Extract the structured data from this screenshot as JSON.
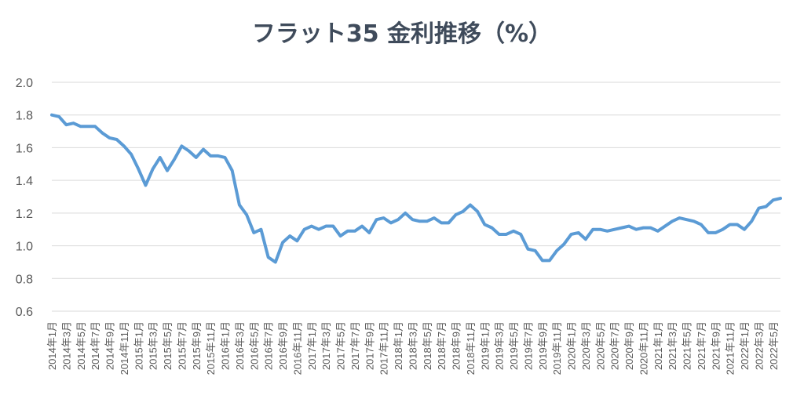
{
  "chart_data": {
    "type": "line",
    "title": "フラット35 金利推移（%）",
    "xlabel": "",
    "ylabel": "",
    "ylim": [
      0.6,
      2.0
    ],
    "yticks": [
      "0.6",
      "0.8",
      "1.0",
      "1.2",
      "1.4",
      "1.6",
      "1.8",
      "2.0"
    ],
    "grid": true,
    "line_color": "#5b9bd5",
    "grid_color": "#d9d9d9",
    "x_tick_labels": [
      "2014年1月",
      "2014年3月",
      "2014年5月",
      "2014年7月",
      "2014年9月",
      "2014年11月",
      "2015年1月",
      "2015年3月",
      "2015年5月",
      "2015年7月",
      "2015年9月",
      "2015年11月",
      "2016年1月",
      "2016年3月",
      "2016年5月",
      "2016年7月",
      "2016年9月",
      "2016年11月",
      "2017年1月",
      "2017年3月",
      "2017年5月",
      "2017年7月",
      "2017年9月",
      "2017年11月",
      "2018年1月",
      "2018年3月",
      "2018年5月",
      "2018年7月",
      "2018年9月",
      "2018年11月",
      "2019年1月",
      "2019年3月",
      "2019年5月",
      "2019年7月",
      "2019年9月",
      "2019年11月",
      "2020年1月",
      "2020年3月",
      "2020年5月",
      "2020年7月",
      "2020年9月",
      "2020年11月",
      "2021年1月",
      "2021年3月",
      "2021年5月",
      "2021年7月",
      "2021年9月",
      "2021年11月",
      "2022年1月",
      "2022年3月",
      "2022年5月"
    ],
    "series": [
      {
        "values": [
          1.8,
          1.79,
          1.74,
          1.75,
          1.73,
          1.73,
          1.73,
          1.69,
          1.66,
          1.65,
          1.61,
          1.56,
          1.47,
          1.37,
          1.47,
          1.54,
          1.46,
          1.53,
          1.61,
          1.58,
          1.54,
          1.59,
          1.55,
          1.55,
          1.54,
          1.46,
          1.25,
          1.19,
          1.08,
          1.1,
          0.93,
          0.9,
          1.02,
          1.06,
          1.03,
          1.1,
          1.12,
          1.1,
          1.12,
          1.12,
          1.06,
          1.09,
          1.09,
          1.12,
          1.08,
          1.16,
          1.17,
          1.14,
          1.16,
          1.2,
          1.16,
          1.15,
          1.15,
          1.17,
          1.14,
          1.14,
          1.19,
          1.21,
          1.25,
          1.21,
          1.13,
          1.11,
          1.07,
          1.07,
          1.09,
          1.07,
          0.98,
          0.97,
          0.91,
          0.91,
          0.97,
          1.01,
          1.07,
          1.08,
          1.04,
          1.1,
          1.1,
          1.09,
          1.1,
          1.11,
          1.12,
          1.1,
          1.11,
          1.11,
          1.09,
          1.12,
          1.15,
          1.17,
          1.16,
          1.15,
          1.13,
          1.08,
          1.08,
          1.1,
          1.13,
          1.13,
          1.1,
          1.15,
          1.23,
          1.24,
          1.28,
          1.29
        ]
      }
    ]
  }
}
